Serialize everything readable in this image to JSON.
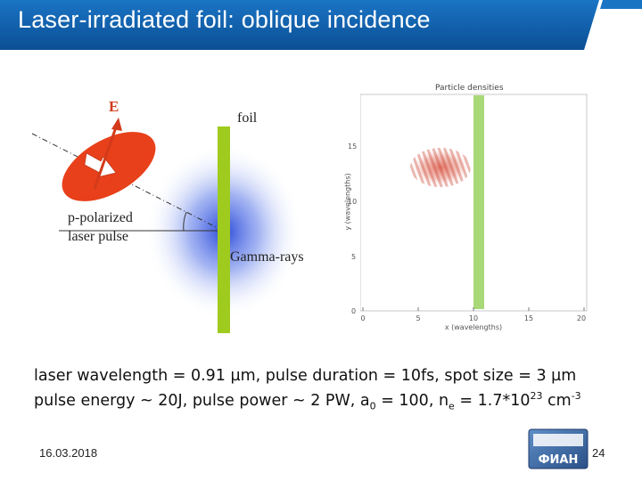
{
  "header": {
    "title": "Laser-irradiated foil: oblique incidence",
    "color": "#0d5fae"
  },
  "diagram": {
    "e_label": "E",
    "foil_label": "foil",
    "pulse_label_line1": "p-polarized",
    "pulse_label_line2": "laser pulse",
    "gamma_label": "Gamma-rays",
    "foil_color": "#9fcb1e",
    "pulse_color": "#e8401a"
  },
  "plot": {
    "title": "Particle densities",
    "xlabel": "x (wavelengths)",
    "ylabel": "y (wavelengths)",
    "x_ticks": [
      "0",
      "5",
      "10",
      "15",
      "20"
    ],
    "y_ticks": [
      "0",
      "5",
      "10",
      "15"
    ]
  },
  "info": {
    "line1": "laser wavelength = 0.91 µm, pulse duration = 10fs, spot size = 3 µm",
    "line2_a": "pulse energy ~ 20J, pulse power ~ 2 PW, a",
    "line2_a_sub": "0",
    "line2_b": " = 100, n",
    "line2_b_sub": "e",
    "line2_c": " = 1.7*10",
    "line2_c_sup": "23",
    "line2_d": " cm",
    "line2_d_sup": "-3"
  },
  "footer": {
    "date": "16.03.2018",
    "page": "24",
    "logo_text": "ФИАН"
  }
}
